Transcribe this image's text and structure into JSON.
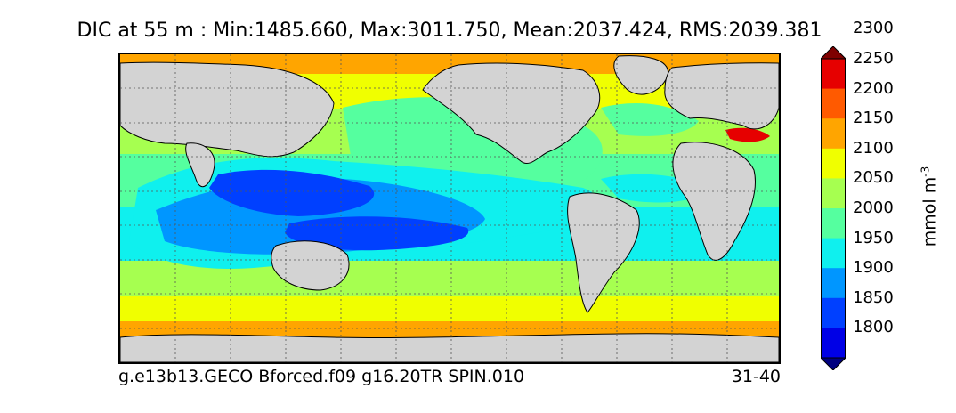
{
  "chart_data": {
    "type": "heatmap",
    "title": "DIC at 55 m : Min:1485.660, Max:3011.750, Mean:2037.424, RMS:2039.381",
    "footer_left": "g.e13b13.GECO Bforced.f09 g16.20TR SPIN.010",
    "footer_right": "31-40",
    "colorbar": {
      "units_label": "mmol m",
      "units_exponent": "-3",
      "levels": [
        1800,
        1850,
        1900,
        1950,
        2000,
        2050,
        2100,
        2150,
        2200,
        2250,
        2300
      ],
      "tick_labels": [
        "1800",
        "1850",
        "1900",
        "1950",
        "2000",
        "2050",
        "2100",
        "2150",
        "2200",
        "2250",
        "2300"
      ],
      "colors": [
        "#00007f",
        "#0000e6",
        "#0040ff",
        "#0096ff",
        "#0ff0ee",
        "#55ff9f",
        "#a6ff50",
        "#f0ff00",
        "#ffa500",
        "#ff5a00",
        "#e60000",
        "#7f0000"
      ],
      "extend": "both"
    },
    "land_color": "#d3d3d3",
    "grid": true
  }
}
